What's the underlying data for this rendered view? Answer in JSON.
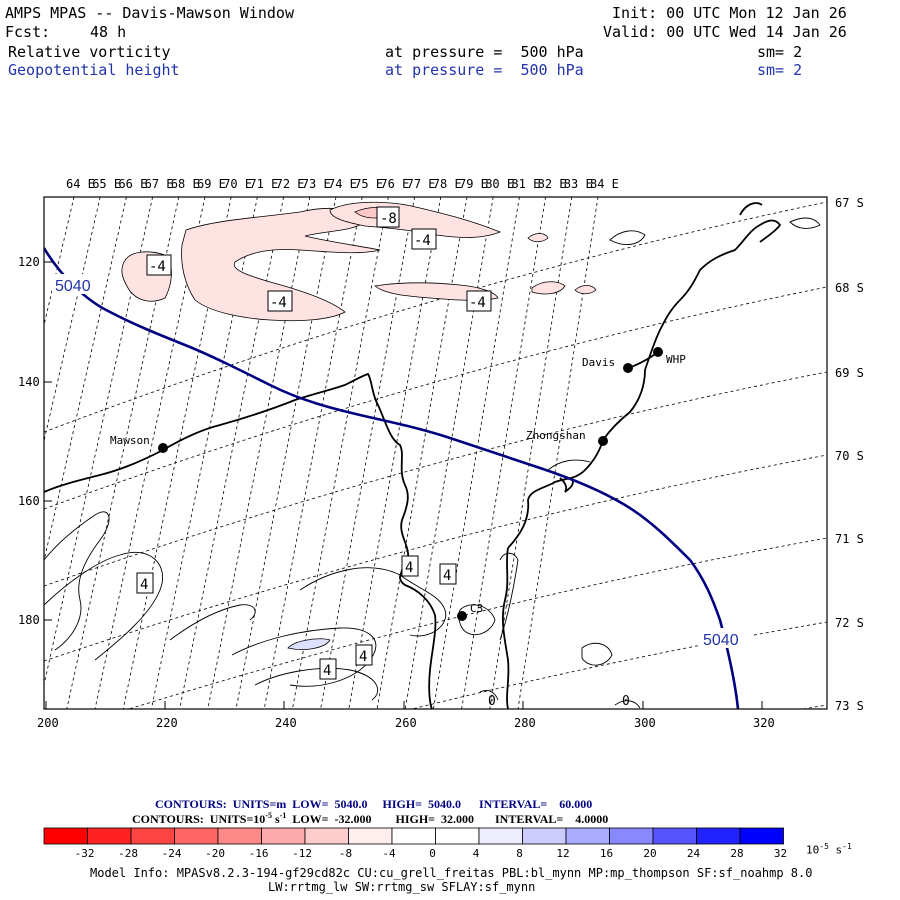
{
  "header": {
    "title": "AMPS MPAS -- Davis-Mawson Window",
    "init": "Init: 00 UTC Mon 12 Jan 26",
    "fcst_label": "Fcst:",
    "fcst_value": "48 h",
    "valid": "Valid: 00 UTC Wed 14 Jan 26",
    "field1": "Relative vorticity",
    "field1_level": "at pressure =  500 hPa",
    "field1_sm": "sm= 2",
    "field2": "Geopotential height",
    "field2_level": "at pressure =  500 hPa",
    "field2_sm": "sm= 2",
    "field2_color": "#2233aa"
  },
  "map": {
    "top_lon_labels": [
      "64 E",
      "65 E",
      "66 E",
      "67 E",
      "68 E",
      "69 E",
      "70 E",
      "71 E",
      "72 E",
      "73 E",
      "74 E",
      "75 E",
      "76 E",
      "77 E",
      "78 E",
      "79 E",
      "80 E",
      "81 E",
      "82 E",
      "83 E",
      "84 E"
    ],
    "right_lat_labels": [
      "67 S",
      "68 S",
      "69 S",
      "70 S",
      "71 S",
      "72 S",
      "73 S"
    ],
    "left_y_ticks": [
      "120",
      "140",
      "160",
      "180"
    ],
    "bottom_x_ticks": [
      "200",
      "220",
      "240",
      "260",
      "280",
      "300",
      "320"
    ],
    "stations": [
      {
        "name": "Davis",
        "icon": "station-dot"
      },
      {
        "name": "WHP",
        "icon": "station-dot"
      },
      {
        "name": "Zhongshan",
        "icon": "station-dot"
      },
      {
        "name": "Mawson",
        "icon": "station-dot"
      },
      {
        "name": "C3",
        "icon": "station-dot"
      }
    ],
    "height_contour_labels": [
      "5040",
      "5040"
    ],
    "vorticity_labels": [
      "-8",
      "-4",
      "-4",
      "-4",
      "-4",
      "4",
      "4",
      "4",
      "4",
      "4",
      "0",
      "0"
    ]
  },
  "footer": {
    "contours_height": "CONTOURS:  UNITS=m  LOW=  5040.0     HIGH=  5040.0      INTERVAL=    60.000",
    "contours_vort_prefix": "CONTOURS:  UNITS=10",
    "contours_vort_exp": "-5",
    "contours_vort_suffix": " s",
    "contours_vort_exp2": "-1",
    "contours_vort_rest": "  LOW=  -32.000        HIGH=  32.000       INTERVAL=    4.0000",
    "colorbar_labels": [
      "-32",
      "-28",
      "-24",
      "-20",
      "-16",
      "-12",
      "-8",
      "-4",
      "0",
      "4",
      "8",
      "12",
      "16",
      "20",
      "24",
      "28",
      "32"
    ],
    "colorbar_unit": "10",
    "colorbar_unit_exp": "-5",
    "colorbar_unit_s": "s",
    "colorbar_unit_exp2": "-1",
    "colorbar_colors": [
      "#ff0000",
      "#ff2222",
      "#ff4444",
      "#ff6666",
      "#ff8888",
      "#ffaaaa",
      "#ffcccc",
      "#ffeeee",
      "#ffffff",
      "#ffffff",
      "#eeeeff",
      "#ccccff",
      "#aaaaff",
      "#8888ff",
      "#5555ff",
      "#2222ff",
      "#0000ff"
    ],
    "model_info": "Model Info: MPASv8.2.3-194-gf29cd82c CU:cu_grell_freitas PBL:bl_mynn MP:mp_thompson SF:sf_noahmp 8.0",
    "model_info2": "LW:rrtmg_lw SW:rrtmg_sw SFLAY:sf_mynn"
  }
}
